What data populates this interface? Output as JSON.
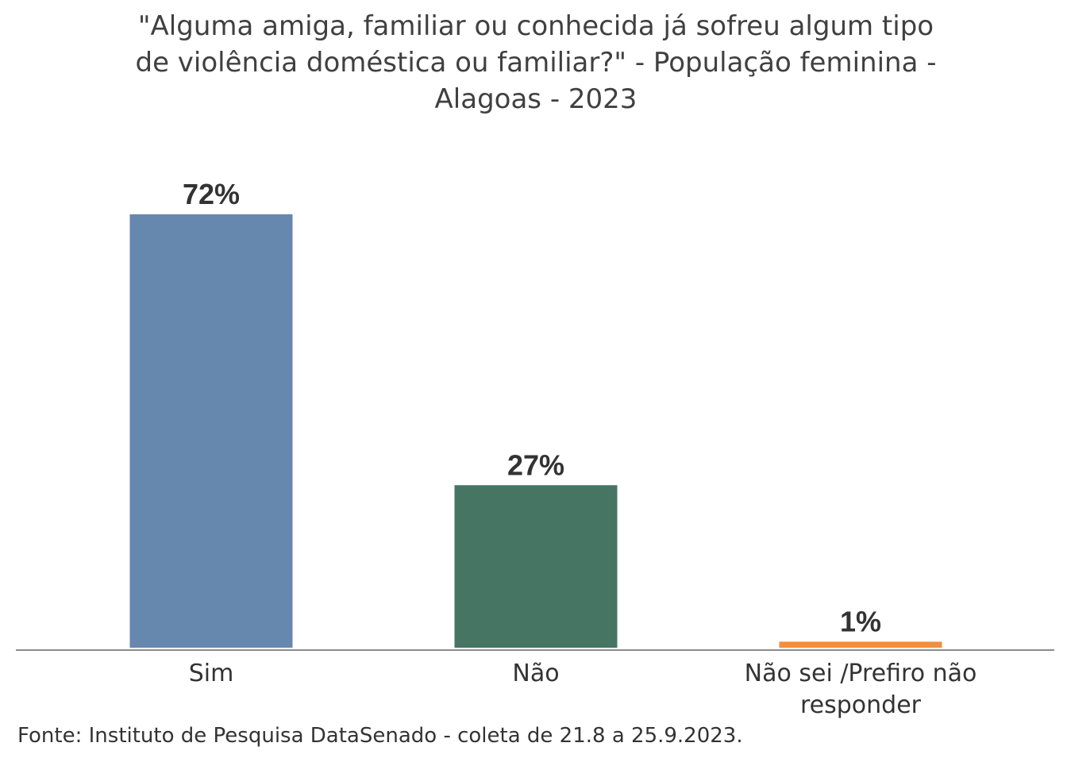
{
  "chart_data": {
    "type": "bar",
    "title_lines": [
      "\"Alguma amiga, familiar ou conhecida já sofreu algum tipo",
      "de violência doméstica ou familiar?\" - População feminina -",
      "Alagoas - 2023"
    ],
    "categories": [
      [
        "Sim"
      ],
      [
        "Não"
      ],
      [
        "Não sei /Prefiro não",
        "responder"
      ]
    ],
    "values": [
      72,
      27,
      1
    ],
    "value_labels": [
      "72%",
      "27%",
      "1%"
    ],
    "colors": [
      "#6687ae",
      "#467563",
      "#f28e3f"
    ],
    "ylim": [
      0,
      100
    ],
    "grid": false,
    "legend": "none"
  },
  "footer": {
    "source": "Fonte: Instituto de Pesquisa DataSenado - coleta de 21.8 a 25.9.2023."
  }
}
